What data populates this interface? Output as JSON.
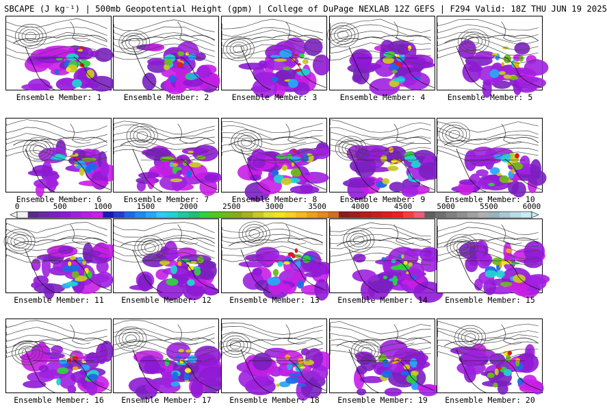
{
  "title": "SBCAPE (J kg⁻¹) | 500mb Geopotential Height (gpm) | College of DuPage NEXLAB 12Z GEFS | F294 Valid: 18Z THU JUN 19 2025",
  "panels": [
    {
      "label": "Ensemble Member: 1"
    },
    {
      "label": "Ensemble Member: 2"
    },
    {
      "label": "Ensemble Member: 3"
    },
    {
      "label": "Ensemble Member: 4"
    },
    {
      "label": "Ensemble Member: 5"
    },
    {
      "label": "Ensemble Member: 6"
    },
    {
      "label": "Ensemble Member: 7"
    },
    {
      "label": "Ensemble Member: 8"
    },
    {
      "label": "Ensemble Member: 9"
    },
    {
      "label": "Ensemble Member: 10"
    },
    {
      "label": "Ensemble Member: 11"
    },
    {
      "label": "Ensemble Member: 12"
    },
    {
      "label": "Ensemble Member: 13"
    },
    {
      "label": "Ensemble Member: 14"
    },
    {
      "label": "Ensemble Member: 15"
    },
    {
      "label": "Ensemble Member: 16"
    },
    {
      "label": "Ensemble Member: 17"
    },
    {
      "label": "Ensemble Member: 18"
    },
    {
      "label": "Ensemble Member: 19"
    },
    {
      "label": "Ensemble Member: 20"
    }
  ],
  "colorbar": {
    "min": 0,
    "max": 6000,
    "tick_labels": [
      "0",
      "500",
      "1000",
      "1500",
      "2000",
      "2500",
      "3000",
      "3500",
      "4000",
      "4500",
      "5000",
      "5500",
      "6000"
    ],
    "colors": [
      "#f2f2f2",
      "#5a2a8a",
      "#6a2aa8",
      "#7a1fc0",
      "#8e1ad4",
      "#a020e0",
      "#b41ee6",
      "#c81ee6",
      "#1a1ab8",
      "#2a3ad0",
      "#1e6ae6",
      "#1e8af2",
      "#28a8f8",
      "#32c8f8",
      "#22d2d2",
      "#20c8a0",
      "#20c070",
      "#30d040",
      "#50c820",
      "#70b81c",
      "#8aa81e",
      "#a8b020",
      "#c8c828",
      "#e0e030",
      "#f2e41e",
      "#f8d01e",
      "#f8b81e",
      "#f0a01e",
      "#e88820",
      "#d07020",
      "#8a1e1e",
      "#a01e1e",
      "#b41e1e",
      "#c81e1e",
      "#dc1e1e",
      "#f01e1e",
      "#ff3a3a",
      "#f05a78",
      "#606060",
      "#707070",
      "#808080",
      "#909090",
      "#a0a0a0",
      "#b0b0b0",
      "#98b4c0",
      "#a8c8d4",
      "#b8dce8",
      "#c8ecf4"
    ]
  }
}
